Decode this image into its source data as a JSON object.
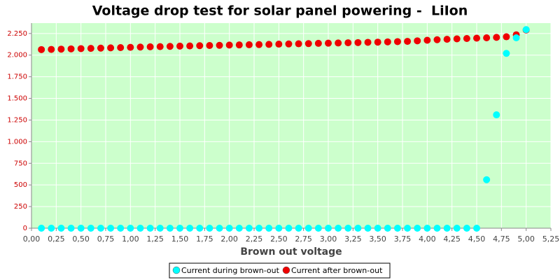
{
  "chart_data": {
    "type": "scatter",
    "title": "Voltage drop test for solar panel powering -  LiIon",
    "xlabel": "Brown out voltage",
    "x": [
      0.1,
      0.2,
      0.3,
      0.4,
      0.5,
      0.6,
      0.7,
      0.8,
      0.9,
      1.0,
      1.1,
      1.2,
      1.3,
      1.4,
      1.5,
      1.6,
      1.7,
      1.8,
      1.9,
      2.0,
      2.1,
      2.2,
      2.3,
      2.4,
      2.5,
      2.6,
      2.7,
      2.8,
      2.9,
      3.0,
      3.1,
      3.2,
      3.3,
      3.4,
      3.5,
      3.6,
      3.7,
      3.8,
      3.9,
      4.0,
      4.1,
      4.2,
      4.3,
      4.4,
      4.5,
      4.6,
      4.7,
      4.8,
      4.9,
      5.0
    ],
    "series": [
      {
        "name": "Current during brown-out",
        "color": "#00ffff",
        "values": [
          0,
          0,
          0,
          0,
          0,
          0,
          0,
          0,
          0,
          0,
          0,
          0,
          0,
          0,
          0,
          0,
          0,
          0,
          0,
          0,
          0,
          0,
          0,
          0,
          0,
          0,
          0,
          0,
          0,
          0,
          0,
          0,
          0,
          0,
          0,
          0,
          0,
          0,
          0,
          0,
          0,
          0,
          0,
          0,
          0,
          560,
          1310,
          2020,
          2200,
          2295
        ]
      },
      {
        "name": "Current after brown-out",
        "color": "#ee0000",
        "values": [
          2064,
          2066,
          2069,
          2072,
          2075,
          2078,
          2081,
          2084,
          2087,
          2090,
          2093,
          2096,
          2098,
          2101,
          2104,
          2106,
          2109,
          2111,
          2113,
          2116,
          2118,
          2120,
          2122,
          2124,
          2127,
          2129,
          2131,
          2133,
          2136,
          2138,
          2140,
          2143,
          2145,
          2148,
          2150,
          2153,
          2156,
          2159,
          2165,
          2172,
          2178,
          2183,
          2188,
          2192,
          2196,
          2200,
          2205,
          2212,
          2235,
          2290
        ]
      }
    ],
    "xlim": [
      0,
      5.25
    ],
    "xticks": [
      {
        "value": 0,
        "label": "0,00"
      },
      {
        "value": 0.25,
        "label": "0,25"
      },
      {
        "value": 0.5,
        "label": "0,50"
      },
      {
        "value": 0.75,
        "label": "0,75"
      },
      {
        "value": 1,
        "label": "1,00"
      },
      {
        "value": 1.25,
        "label": "1,25"
      },
      {
        "value": 1.5,
        "label": "1,50"
      },
      {
        "value": 1.75,
        "label": "1,75"
      },
      {
        "value": 2,
        "label": "2,00"
      },
      {
        "value": 2.25,
        "label": "2,25"
      },
      {
        "value": 2.5,
        "label": "2,50"
      },
      {
        "value": 2.75,
        "label": "2,75"
      },
      {
        "value": 3,
        "label": "3,00"
      },
      {
        "value": 3.25,
        "label": "3,25"
      },
      {
        "value": 3.5,
        "label": "3,50"
      },
      {
        "value": 3.75,
        "label": "3,75"
      },
      {
        "value": 4,
        "label": "4,00"
      },
      {
        "value": 4.25,
        "label": "4,25"
      },
      {
        "value": 4.5,
        "label": "4,50"
      },
      {
        "value": 4.75,
        "label": "4,75"
      },
      {
        "value": 5,
        "label": "5,00"
      },
      {
        "value": 5.25,
        "label": "5,25"
      }
    ],
    "ylim": [
      0,
      2370
    ],
    "yticks": [
      0,
      250,
      500,
      750,
      {
        "value": 1000,
        "label": "1.000"
      },
      {
        "value": 1250,
        "label": "1.250"
      },
      {
        "value": 1500,
        "label": "1.500"
      },
      {
        "value": 1750,
        "label": "1.750"
      },
      {
        "value": 2000,
        "label": "2.000"
      },
      {
        "value": 2250,
        "label": "2.250"
      }
    ],
    "grid": true
  }
}
